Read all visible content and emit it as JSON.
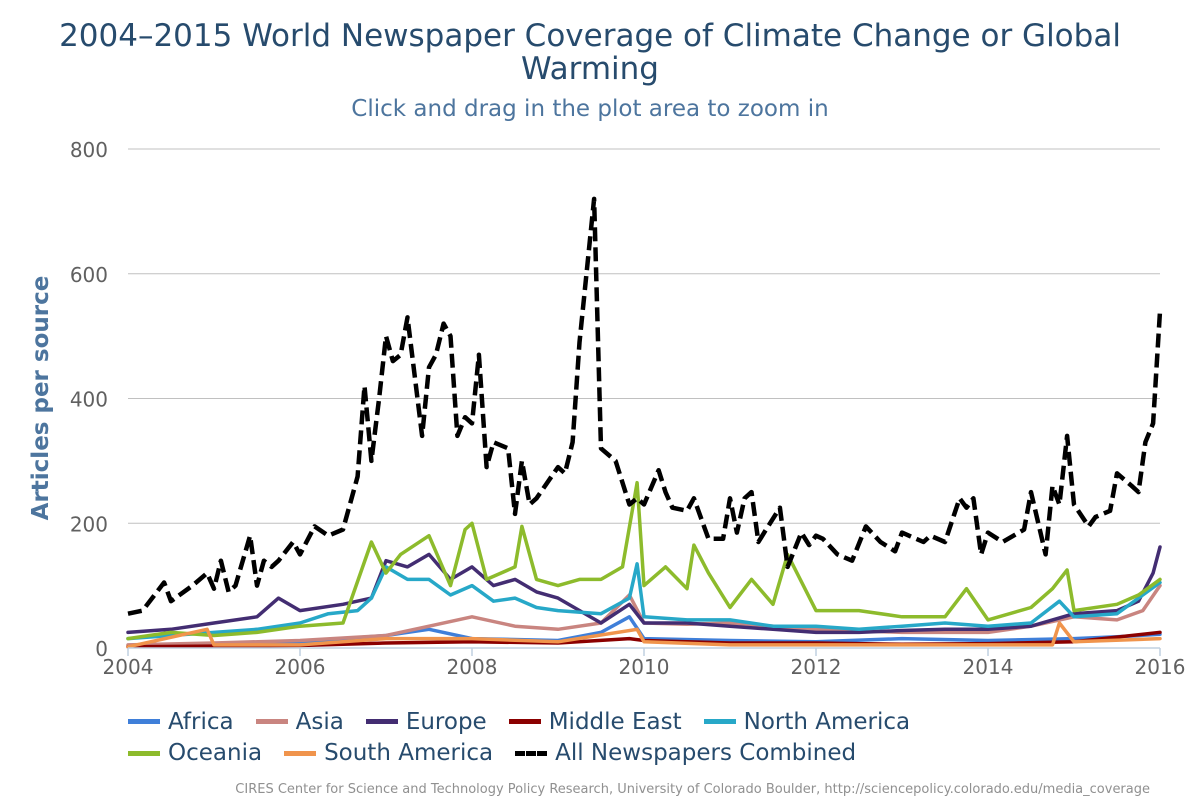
{
  "header": {
    "title": "2004–2015 World Newspaper Coverage of Climate Change or Global Warming",
    "subtitle": "Click and drag in the plot area to zoom in"
  },
  "credits": "CIRES Center for Science and Technology Policy Research, University of Colorado Boulder, http://sciencepolicy.colorado.edu/media_coverage",
  "chart_data": {
    "type": "line",
    "title": "2004–2015 World Newspaper Coverage of Climate Change or Global Warming",
    "subtitle": "Click and drag in the plot area to zoom in",
    "xlabel": "",
    "ylabel": "Articles per source",
    "xlim": [
      2004,
      2016
    ],
    "ylim": [
      0,
      800
    ],
    "x_ticks": [
      "2004",
      "2006",
      "2008",
      "2010",
      "2012",
      "2014",
      "2016"
    ],
    "y_ticks": [
      "0",
      "200",
      "400",
      "600",
      "800"
    ],
    "grid": "horizontal",
    "legend_position": "bottom",
    "series": [
      {
        "name": "Africa",
        "color": "#3f7fd9",
        "dashed": false,
        "x": [
          2004.0,
          2005.0,
          2006.0,
          2007.0,
          2007.5,
          2008.0,
          2009.0,
          2009.5,
          2009.83,
          2010.0,
          2011.0,
          2012.0,
          2013.0,
          2014.0,
          2015.0,
          2015.5,
          2016.0
        ],
        "y": [
          3,
          5,
          10,
          20,
          30,
          15,
          12,
          25,
          50,
          15,
          12,
          10,
          15,
          12,
          15,
          18,
          22
        ]
      },
      {
        "name": "Asia",
        "color": "#c98580",
        "dashed": false,
        "x": [
          2004.0,
          2005.0,
          2006.0,
          2007.0,
          2007.5,
          2008.0,
          2008.5,
          2009.0,
          2009.5,
          2009.83,
          2010.0,
          2010.5,
          2011.0,
          2012.0,
          2013.0,
          2014.0,
          2014.5,
          2015.0,
          2015.5,
          2015.8,
          2016.0
        ],
        "y": [
          5,
          8,
          12,
          20,
          35,
          50,
          35,
          30,
          40,
          85,
          40,
          38,
          40,
          30,
          25,
          25,
          35,
          50,
          45,
          60,
          100
        ]
      },
      {
        "name": "Europe",
        "color": "#432d72",
        "dashed": false,
        "x": [
          2004.0,
          2004.5,
          2005.0,
          2005.5,
          2005.75,
          2006.0,
          2006.5,
          2006.83,
          2007.0,
          2007.25,
          2007.5,
          2007.75,
          2008.0,
          2008.25,
          2008.5,
          2008.75,
          2009.0,
          2009.5,
          2009.83,
          2010.0,
          2010.5,
          2011.0,
          2011.5,
          2012.0,
          2012.5,
          2013.0,
          2013.5,
          2014.0,
          2014.5,
          2015.0,
          2015.5,
          2015.75,
          2015.92,
          2016.0
        ],
        "y": [
          25,
          30,
          40,
          50,
          80,
          60,
          70,
          80,
          140,
          130,
          150,
          110,
          130,
          100,
          110,
          90,
          80,
          40,
          70,
          40,
          40,
          35,
          30,
          25,
          25,
          28,
          30,
          30,
          35,
          55,
          60,
          75,
          120,
          162
        ]
      },
      {
        "name": "Middle East",
        "color": "#8b0000",
        "dashed": false,
        "x": [
          2004.0,
          2005.0,
          2006.0,
          2007.0,
          2008.0,
          2009.0,
          2009.83,
          2010.0,
          2011.0,
          2012.0,
          2013.0,
          2014.0,
          2015.0,
          2016.0
        ],
        "y": [
          2,
          3,
          4,
          8,
          10,
          8,
          15,
          12,
          8,
          8,
          6,
          7,
          10,
          25
        ]
      },
      {
        "name": "North America",
        "color": "#27a8c8",
        "dashed": false,
        "x": [
          2004.0,
          2004.5,
          2005.0,
          2005.5,
          2006.0,
          2006.33,
          2006.67,
          2006.83,
          2007.0,
          2007.25,
          2007.5,
          2007.75,
          2008.0,
          2008.25,
          2008.5,
          2008.75,
          2009.0,
          2009.5,
          2009.83,
          2009.92,
          2010.0,
          2010.5,
          2011.0,
          2011.5,
          2012.0,
          2012.5,
          2013.0,
          2013.5,
          2014.0,
          2014.5,
          2014.83,
          2015.0,
          2015.5,
          2016.0
        ],
        "y": [
          15,
          20,
          25,
          30,
          40,
          55,
          60,
          80,
          130,
          110,
          110,
          85,
          100,
          75,
          80,
          65,
          60,
          55,
          80,
          135,
          50,
          45,
          45,
          35,
          35,
          30,
          35,
          40,
          35,
          40,
          75,
          50,
          55,
          105
        ]
      },
      {
        "name": "Oceania",
        "color": "#8dbb2c",
        "dashed": false,
        "x": [
          2004.0,
          2004.5,
          2005.0,
          2005.5,
          2006.0,
          2006.5,
          2006.83,
          2007.0,
          2007.17,
          2007.5,
          2007.75,
          2007.92,
          2008.0,
          2008.17,
          2008.5,
          2008.58,
          2008.75,
          2009.0,
          2009.25,
          2009.5,
          2009.75,
          2009.92,
          2010.0,
          2010.25,
          2010.5,
          2010.58,
          2010.75,
          2011.0,
          2011.25,
          2011.5,
          2011.67,
          2012.0,
          2012.5,
          2013.0,
          2013.5,
          2013.75,
          2014.0,
          2014.5,
          2014.75,
          2014.92,
          2015.0,
          2015.5,
          2015.75,
          2016.0
        ],
        "y": [
          15,
          25,
          20,
          25,
          35,
          40,
          170,
          120,
          150,
          180,
          100,
          190,
          200,
          110,
          130,
          195,
          110,
          100,
          110,
          110,
          130,
          265,
          100,
          130,
          95,
          165,
          120,
          65,
          110,
          70,
          150,
          60,
          60,
          50,
          50,
          95,
          45,
          65,
          95,
          125,
          60,
          70,
          85,
          110
        ]
      },
      {
        "name": "South America",
        "color": "#f0944c",
        "dashed": false,
        "x": [
          2004.0,
          2004.92,
          2005.0,
          2006.0,
          2007.0,
          2008.0,
          2009.0,
          2009.92,
          2010.0,
          2011.0,
          2012.0,
          2013.0,
          2014.0,
          2014.75,
          2014.83,
          2015.0,
          2016.0
        ],
        "y": [
          2,
          30,
          5,
          5,
          15,
          15,
          10,
          30,
          10,
          5,
          5,
          5,
          5,
          5,
          40,
          10,
          15
        ]
      },
      {
        "name": "All Newspapers Combined",
        "color": "#000000",
        "dashed": true,
        "x": [
          2004.0,
          2004.17,
          2004.42,
          2004.5,
          2004.75,
          2004.92,
          2005.0,
          2005.08,
          2005.17,
          2005.25,
          2005.42,
          2005.5,
          2005.58,
          2005.67,
          2005.75,
          2005.92,
          2006.0,
          2006.17,
          2006.33,
          2006.5,
          2006.67,
          2006.75,
          2006.83,
          2006.92,
          2007.0,
          2007.08,
          2007.17,
          2007.25,
          2007.42,
          2007.5,
          2007.58,
          2007.67,
          2007.75,
          2007.83,
          2007.92,
          2008.0,
          2008.08,
          2008.17,
          2008.25,
          2008.42,
          2008.5,
          2008.58,
          2008.67,
          2008.75,
          2009.0,
          2009.08,
          2009.17,
          2009.25,
          2009.42,
          2009.5,
          2009.67,
          2009.83,
          2009.92,
          2010.0,
          2010.17,
          2010.25,
          2010.33,
          2010.5,
          2010.58,
          2010.75,
          2010.92,
          2011.0,
          2011.08,
          2011.17,
          2011.25,
          2011.33,
          2011.42,
          2011.58,
          2011.67,
          2011.83,
          2011.92,
          2012.0,
          2012.08,
          2012.25,
          2012.42,
          2012.58,
          2012.75,
          2012.92,
          2013.0,
          2013.25,
          2013.33,
          2013.5,
          2013.67,
          2013.75,
          2013.83,
          2013.92,
          2014.0,
          2014.17,
          2014.42,
          2014.5,
          2014.67,
          2014.75,
          2014.83,
          2014.92,
          2015.0,
          2015.17,
          2015.25,
          2015.42,
          2015.5,
          2015.67,
          2015.75,
          2015.83,
          2015.92,
          2016.0
        ],
        "y": [
          55,
          60,
          105,
          75,
          100,
          120,
          95,
          140,
          90,
          100,
          180,
          100,
          140,
          130,
          140,
          170,
          150,
          195,
          180,
          190,
          275,
          420,
          300,
          400,
          500,
          460,
          470,
          530,
          340,
          450,
          470,
          520,
          500,
          340,
          370,
          360,
          470,
          290,
          330,
          320,
          215,
          300,
          230,
          240,
          290,
          280,
          330,
          490,
          720,
          320,
          300,
          230,
          240,
          230,
          285,
          250,
          225,
          220,
          240,
          175,
          175,
          240,
          185,
          240,
          250,
          170,
          190,
          225,
          130,
          185,
          165,
          180,
          175,
          150,
          140,
          195,
          170,
          155,
          185,
          170,
          180,
          170,
          240,
          225,
          240,
          150,
          185,
          170,
          190,
          250,
          150,
          260,
          230,
          340,
          230,
          195,
          210,
          220,
          280,
          260,
          250,
          330,
          360,
          540
        ]
      }
    ]
  }
}
